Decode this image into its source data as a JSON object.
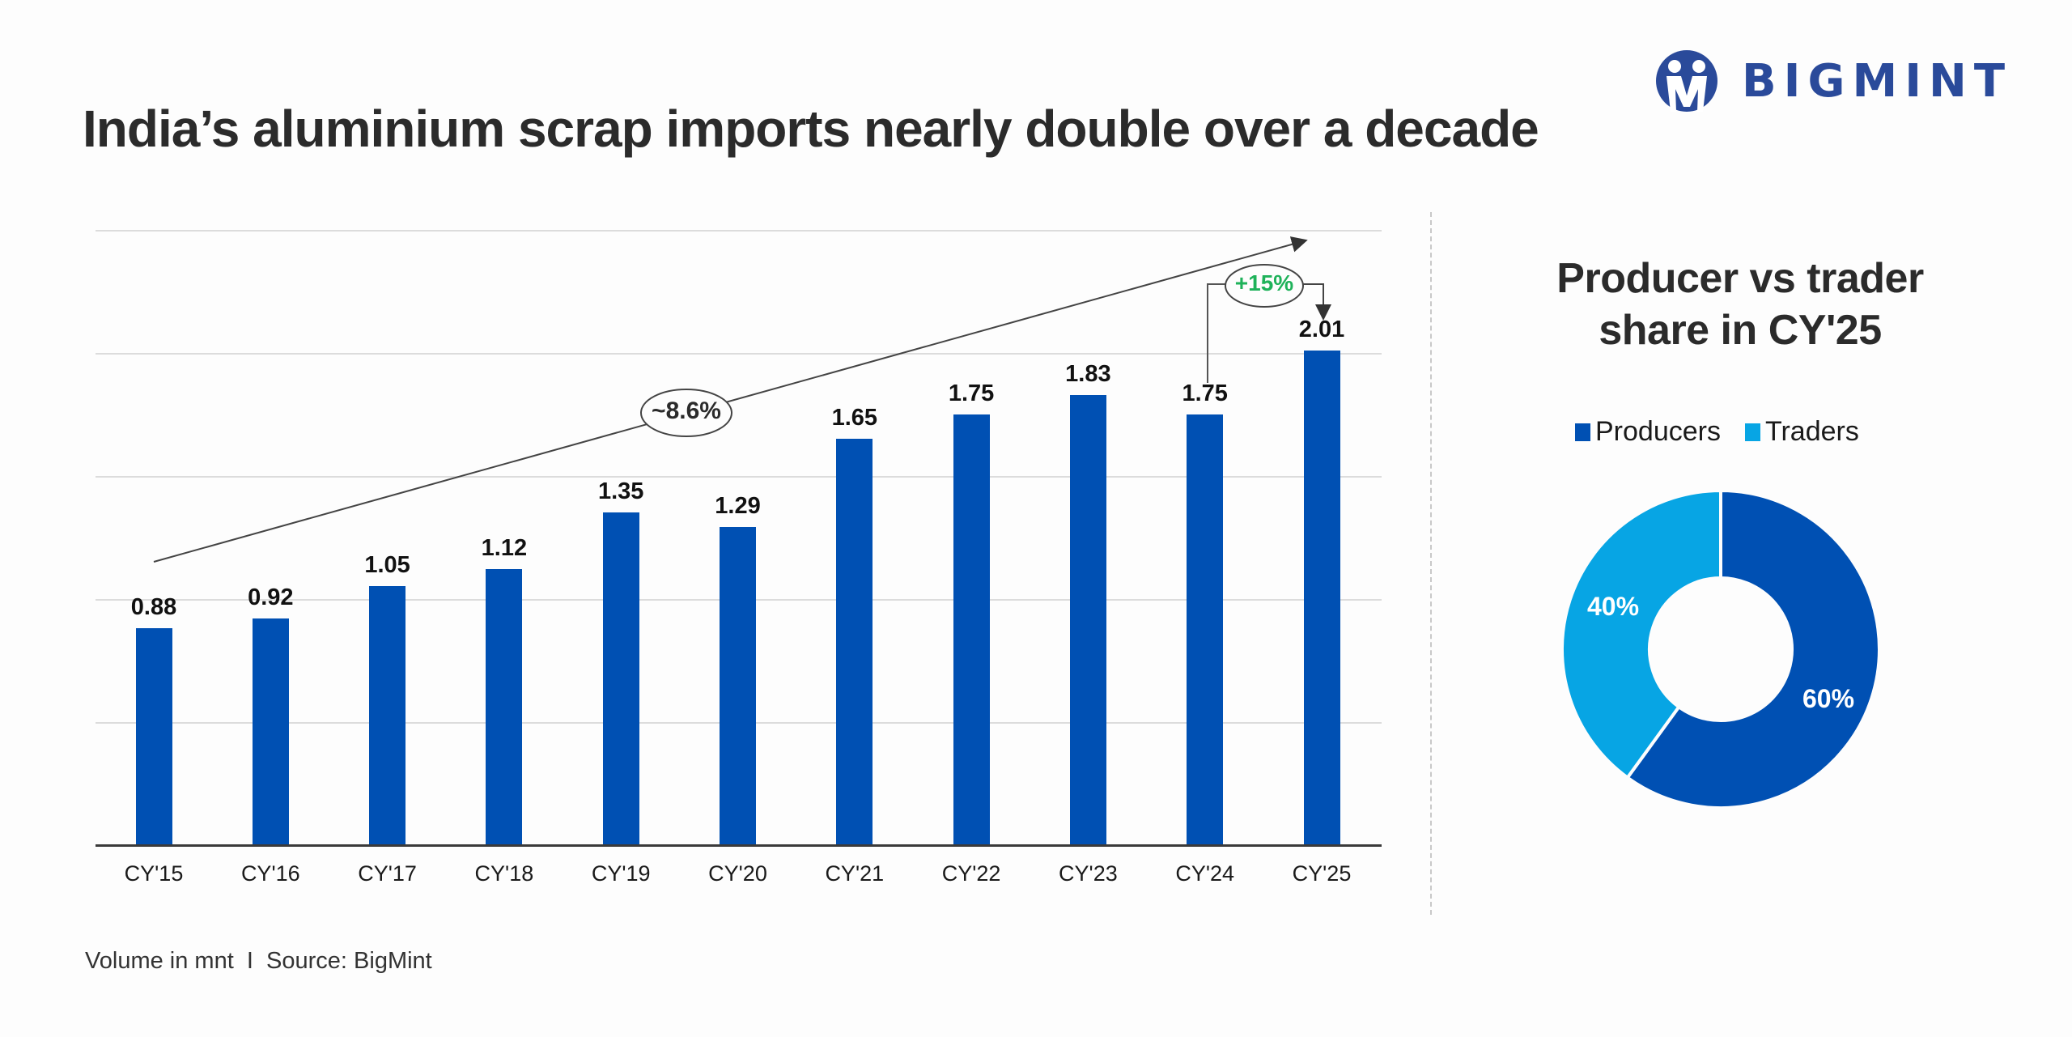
{
  "header": {
    "title": "India’s aluminium scrap imports nearly double over a decade",
    "logo_text": "BIGMINT",
    "logo_icon": "bigmint-logo-icon"
  },
  "colors": {
    "bar": "#0050b3",
    "producers": "#0050b3",
    "traders": "#07a5e4",
    "growth_green": "#1fb25a",
    "logo_blue": "#2a4a9a",
    "text": "#2b2b2b"
  },
  "annotations": {
    "cagr": "~8.6%",
    "yoy": "+15%"
  },
  "footer": {
    "note": "Volume in mnt  I  Source: BigMint"
  },
  "donut": {
    "title_line1": "Producer vs trader",
    "title_line2": "share in CY'25",
    "legend": [
      {
        "label": "Producers",
        "color": "#0050b3"
      },
      {
        "label": "Traders",
        "color": "#07a5e4"
      }
    ],
    "labels": {
      "producers": "60%",
      "traders": "40%"
    }
  },
  "chart_data": [
    {
      "type": "bar",
      "title": "India’s aluminium scrap imports nearly double over a decade",
      "categories": [
        "CY'15",
        "CY'16",
        "CY'17",
        "CY'18",
        "CY'19",
        "CY'20",
        "CY'21",
        "CY'22",
        "CY'23",
        "CY'24",
        "CY'25"
      ],
      "values": [
        0.88,
        0.92,
        1.05,
        1.12,
        1.35,
        1.29,
        1.65,
        1.75,
        1.83,
        1.75,
        2.01
      ],
      "value_labels": [
        "0.88",
        "0.92",
        "1.05",
        "1.12",
        "1.35",
        "1.29",
        "1.65",
        "1.75",
        "1.83",
        "1.75",
        "2.01"
      ],
      "xlabel": "",
      "ylabel": "Volume in mnt",
      "ylim": [
        0,
        2.5
      ],
      "grid": true,
      "y_tick_labels_visible": false,
      "annotations": [
        {
          "text": "~8.6%",
          "description": "CAGR trend arrow CY'15 to CY'25"
        },
        {
          "text": "+15%",
          "description": "YoY growth CY'24 to CY'25"
        }
      ],
      "source": "BigMint"
    },
    {
      "type": "pie",
      "title": "Producer vs trader share in CY'25",
      "donut": true,
      "categories": [
        "Producers",
        "Traders"
      ],
      "values": [
        60,
        40
      ],
      "legend_position": "top"
    }
  ]
}
